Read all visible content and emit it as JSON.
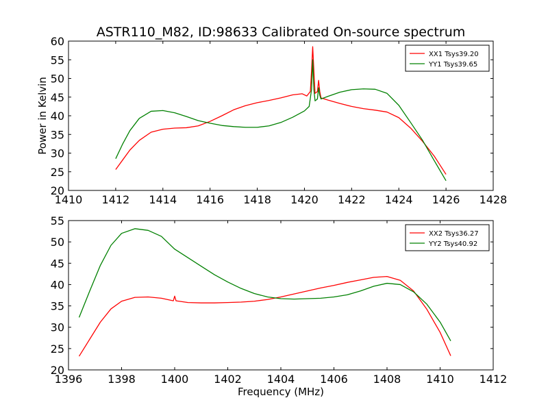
{
  "figure": {
    "title": "ASTR110_M82, ID:98633 Calibrated On-source spectrum",
    "ylabel": "Power in Kelvin",
    "xlabel": "Frequency (MHz)"
  },
  "chart_data": [
    {
      "type": "line",
      "xlim": [
        1410,
        1428
      ],
      "ylim": [
        20,
        60
      ],
      "x_ticks": [
        1410,
        1412,
        1414,
        1416,
        1418,
        1420,
        1422,
        1424,
        1426,
        1428
      ],
      "y_ticks": [
        20,
        25,
        30,
        35,
        40,
        45,
        50,
        55,
        60
      ],
      "ylabel": "Power in Kelvin",
      "legend_position": "upper-right",
      "series": [
        {
          "name": "XX1 Tsys39.20",
          "color": "#ff0000",
          "points": [
            [
              1412.0,
              25.6
            ],
            [
              1412.3,
              28.2
            ],
            [
              1412.6,
              30.8
            ],
            [
              1413.0,
              33.4
            ],
            [
              1413.5,
              35.6
            ],
            [
              1414.0,
              36.4
            ],
            [
              1414.5,
              36.7
            ],
            [
              1415.0,
              36.8
            ],
            [
              1415.5,
              37.3
            ],
            [
              1416.0,
              38.5
            ],
            [
              1416.5,
              40.0
            ],
            [
              1417.0,
              41.6
            ],
            [
              1417.5,
              42.7
            ],
            [
              1418.0,
              43.5
            ],
            [
              1418.5,
              44.1
            ],
            [
              1419.0,
              44.8
            ],
            [
              1419.5,
              45.6
            ],
            [
              1419.9,
              45.9
            ],
            [
              1420.1,
              45.3
            ],
            [
              1420.25,
              46.5
            ],
            [
              1420.3,
              52.0
            ],
            [
              1420.35,
              58.5
            ],
            [
              1420.4,
              52.0
            ],
            [
              1420.45,
              46.0
            ],
            [
              1420.55,
              46.5
            ],
            [
              1420.6,
              49.5
            ],
            [
              1420.65,
              46.5
            ],
            [
              1420.7,
              44.8
            ],
            [
              1421.0,
              44.2
            ],
            [
              1421.5,
              43.3
            ],
            [
              1422.0,
              42.5
            ],
            [
              1422.5,
              41.9
            ],
            [
              1423.0,
              41.5
            ],
            [
              1423.5,
              41.0
            ],
            [
              1424.0,
              39.5
            ],
            [
              1424.5,
              36.7
            ],
            [
              1425.0,
              33.2
            ],
            [
              1425.5,
              29.2
            ],
            [
              1426.0,
              24.3
            ]
          ]
        },
        {
          "name": "YY1 Tsys39.65",
          "color": "#008000",
          "points": [
            [
              1412.0,
              28.5
            ],
            [
              1412.3,
              32.5
            ],
            [
              1412.6,
              36.0
            ],
            [
              1413.0,
              39.3
            ],
            [
              1413.5,
              41.2
            ],
            [
              1414.0,
              41.4
            ],
            [
              1414.5,
              40.8
            ],
            [
              1415.0,
              39.8
            ],
            [
              1415.5,
              38.7
            ],
            [
              1416.0,
              38.0
            ],
            [
              1416.5,
              37.4
            ],
            [
              1417.0,
              37.1
            ],
            [
              1417.5,
              36.9
            ],
            [
              1418.0,
              36.9
            ],
            [
              1418.5,
              37.3
            ],
            [
              1419.0,
              38.2
            ],
            [
              1419.5,
              39.6
            ],
            [
              1420.0,
              41.3
            ],
            [
              1420.2,
              42.5
            ],
            [
              1420.3,
              47.0
            ],
            [
              1420.35,
              55.0
            ],
            [
              1420.4,
              47.0
            ],
            [
              1420.45,
              44.0
            ],
            [
              1420.55,
              44.5
            ],
            [
              1420.6,
              47.5
            ],
            [
              1420.65,
              45.5
            ],
            [
              1420.7,
              44.5
            ],
            [
              1421.0,
              45.2
            ],
            [
              1421.5,
              46.3
            ],
            [
              1422.0,
              47.0
            ],
            [
              1422.5,
              47.2
            ],
            [
              1423.0,
              47.1
            ],
            [
              1423.5,
              46.0
            ],
            [
              1424.0,
              42.8
            ],
            [
              1424.5,
              38.2
            ],
            [
              1425.0,
              33.5
            ],
            [
              1425.5,
              28.0
            ],
            [
              1426.0,
              22.6
            ]
          ]
        }
      ]
    },
    {
      "type": "line",
      "xlim": [
        1396,
        1412
      ],
      "ylim": [
        20,
        55
      ],
      "x_ticks": [
        1396,
        1398,
        1400,
        1402,
        1404,
        1406,
        1408,
        1410,
        1412
      ],
      "y_ticks": [
        20,
        25,
        30,
        35,
        40,
        45,
        50,
        55
      ],
      "xlabel": "Frequency (MHz)",
      "legend_position": "upper-right",
      "series": [
        {
          "name": "XX2 Tsys36.27",
          "color": "#ff0000",
          "points": [
            [
              1396.4,
              23.2
            ],
            [
              1396.8,
              27.2
            ],
            [
              1397.2,
              31.2
            ],
            [
              1397.6,
              34.3
            ],
            [
              1398.0,
              36.1
            ],
            [
              1398.5,
              37.0
            ],
            [
              1399.0,
              37.1
            ],
            [
              1399.5,
              36.8
            ],
            [
              1399.95,
              36.2
            ],
            [
              1400.0,
              37.3
            ],
            [
              1400.05,
              36.2
            ],
            [
              1400.5,
              35.8
            ],
            [
              1401.0,
              35.7
            ],
            [
              1401.5,
              35.7
            ],
            [
              1402.0,
              35.8
            ],
            [
              1402.5,
              35.9
            ],
            [
              1403.0,
              36.1
            ],
            [
              1403.5,
              36.5
            ],
            [
              1404.0,
              37.1
            ],
            [
              1404.5,
              37.8
            ],
            [
              1405.0,
              38.5
            ],
            [
              1405.5,
              39.2
            ],
            [
              1406.0,
              39.8
            ],
            [
              1406.5,
              40.5
            ],
            [
              1407.0,
              41.1
            ],
            [
              1407.5,
              41.7
            ],
            [
              1408.0,
              41.9
            ],
            [
              1408.5,
              41.0
            ],
            [
              1409.0,
              38.5
            ],
            [
              1409.5,
              34.2
            ],
            [
              1410.0,
              28.8
            ],
            [
              1410.4,
              23.3
            ]
          ]
        },
        {
          "name": "YY2 Tsys40.92",
          "color": "#008000",
          "points": [
            [
              1396.4,
              32.3
            ],
            [
              1396.8,
              38.5
            ],
            [
              1397.2,
              44.5
            ],
            [
              1397.6,
              49.2
            ],
            [
              1398.0,
              52.0
            ],
            [
              1398.5,
              53.1
            ],
            [
              1399.0,
              52.7
            ],
            [
              1399.5,
              51.3
            ],
            [
              1400.0,
              48.3
            ],
            [
              1400.5,
              46.3
            ],
            [
              1401.0,
              44.3
            ],
            [
              1401.5,
              42.3
            ],
            [
              1402.0,
              40.6
            ],
            [
              1402.5,
              39.1
            ],
            [
              1403.0,
              37.9
            ],
            [
              1403.5,
              37.1
            ],
            [
              1404.0,
              36.7
            ],
            [
              1404.5,
              36.6
            ],
            [
              1405.0,
              36.7
            ],
            [
              1405.5,
              36.8
            ],
            [
              1406.0,
              37.1
            ],
            [
              1406.5,
              37.6
            ],
            [
              1407.0,
              38.5
            ],
            [
              1407.5,
              39.6
            ],
            [
              1408.0,
              40.3
            ],
            [
              1408.5,
              40.0
            ],
            [
              1409.0,
              38.3
            ],
            [
              1409.5,
              35.4
            ],
            [
              1410.0,
              31.2
            ],
            [
              1410.4,
              26.8
            ]
          ]
        }
      ]
    }
  ]
}
